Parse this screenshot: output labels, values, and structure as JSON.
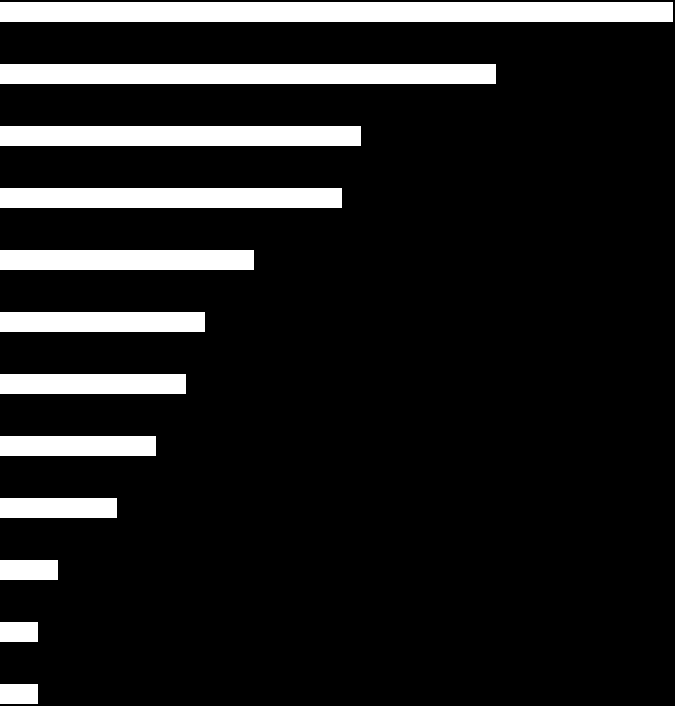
{
  "chart_data": {
    "type": "barh",
    "values": [
      673,
      496,
      361,
      342,
      254,
      205,
      186,
      156,
      117,
      58,
      38,
      38
    ],
    "color": "#ffffff",
    "xlim": [
      0,
      675
    ]
  }
}
